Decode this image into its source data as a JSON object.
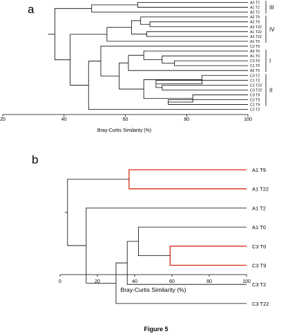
{
  "caption": "Figure 5",
  "panel_a": {
    "label": "a",
    "axis_title": "Bray-Curtis Similarity (%)",
    "ticks": [
      "20",
      "40",
      "60",
      "80",
      "100"
    ],
    "leaves": [
      "A3 T2",
      "A1 T2",
      "A2 T2",
      "A3 T9",
      "A2 T9",
      "A3 T22",
      "A1 T22",
      "A2 T22",
      "A1 T9",
      "C2 T0",
      "A3 T0",
      "A1 T0",
      "C3 T0",
      "C1 T0",
      "A2 T0",
      "C3 T2",
      "C1 T2",
      "C1 T22",
      "C3 T22",
      "C3 T9",
      "C2 T9",
      "C1 T9",
      "C2 T2"
    ],
    "groups": [
      {
        "name": "III",
        "from_leaf": 0,
        "to_leaf": 2
      },
      {
        "name": "IV",
        "from_leaf": 3,
        "to_leaf": 8
      },
      {
        "name": "I",
        "from_leaf": 10,
        "to_leaf": 14
      },
      {
        "name": "II",
        "from_leaf": 15,
        "to_leaf": 21
      }
    ]
  },
  "panel_b": {
    "label": "b",
    "axis_title": "Bray-Curtis Similarity (%)",
    "ticks": [
      "0",
      "20",
      "40",
      "60",
      "80",
      "100"
    ],
    "leaves": [
      "A1 T9",
      "A1 T22",
      "A1 T2",
      "A1 T0",
      "C3 T0",
      "C3 T9",
      "C3 T2",
      "C3 T22"
    ],
    "highlight_color": "#d42a10"
  },
  "chart_data": [
    {
      "type": "dendrogram",
      "xlabel": "Bray-Curtis Similarity (%)",
      "xlim": [
        20,
        100
      ],
      "leaves": [
        "A3 T2",
        "A1 T2",
        "A2 T2",
        "A3 T9",
        "A2 T9",
        "A3 T22",
        "A1 T22",
        "A2 T22",
        "A1 T9",
        "C2 T0",
        "A3 T0",
        "A1 T0",
        "C3 T0",
        "C1 T0",
        "A2 T0",
        "C3 T2",
        "C1 T2",
        "C1 T22",
        "C3 T22",
        "C3 T9",
        "C2 T9",
        "C1 T9",
        "C2 T2"
      ],
      "merges": [
        {
          "a": "leaf:0",
          "b": "leaf:1",
          "similarity": 64
        },
        {
          "a": "merge:0",
          "b": "leaf:2",
          "similarity": 49
        },
        {
          "a": "leaf:4",
          "b": "leaf:5",
          "similarity": 68
        },
        {
          "a": "leaf:3",
          "b": "merge:2",
          "similarity": 65
        },
        {
          "a": "leaf:6",
          "b": "leaf:7",
          "similarity": 67
        },
        {
          "a": "merge:3",
          "b": "merge:4",
          "similarity": 62
        },
        {
          "a": "merge:5",
          "b": "leaf:8",
          "similarity": 54
        },
        {
          "a": "leaf:12",
          "b": "leaf:13",
          "similarity": 76
        },
        {
          "a": "leaf:11",
          "b": "merge:7",
          "similarity": 72
        },
        {
          "a": "leaf:10",
          "b": "merge:8",
          "similarity": 66
        },
        {
          "a": "merge:9",
          "b": "leaf:14",
          "similarity": 61
        },
        {
          "a": "leaf:17",
          "b": "leaf:18",
          "similarity": 72
        },
        {
          "a": "leaf:16",
          "b": "merge:11",
          "similarity": 70
        },
        {
          "a": "leaf:15",
          "b": "merge:12",
          "similarity": 85
        },
        {
          "a": "leaf:20",
          "b": "leaf:21",
          "similarity": 74
        },
        {
          "a": "leaf:19",
          "b": "merge:14",
          "similarity": 82
        },
        {
          "a": "merge:13",
          "b": "merge:15",
          "similarity": 66
        },
        {
          "a": "merge:10",
          "b": "merge:16",
          "similarity": 58
        },
        {
          "a": "leaf:9",
          "b": "merge:17",
          "similarity": 52
        },
        {
          "a": "merge:18",
          "b": "leaf:22",
          "similarity": 48
        },
        {
          "a": "merge:6",
          "b": "merge:19",
          "similarity": 42
        },
        {
          "a": "merge:1",
          "b": "merge:20",
          "similarity": 37
        }
      ]
    },
    {
      "type": "dendrogram",
      "xlabel": "Bray-Curtis Similarity (%)",
      "xlim": [
        0,
        100
      ],
      "leaves": [
        "A1 T9",
        "A1 T22",
        "A1 T2",
        "A1 T0",
        "C3 T0",
        "C3 T9",
        "C3 T2",
        "C3 T22"
      ],
      "merges": [
        {
          "a": "leaf:0",
          "b": "leaf:1",
          "similarity": 37,
          "highlight": true
        },
        {
          "a": "leaf:4",
          "b": "leaf:5",
          "similarity": 59,
          "highlight": true
        },
        {
          "a": "leaf:3",
          "b": "merge:1",
          "similarity": 42
        },
        {
          "a": "merge:2",
          "b": "leaf:6",
          "similarity": 36
        },
        {
          "a": "merge:3",
          "b": "leaf:7",
          "similarity": 30
        },
        {
          "a": "leaf:2",
          "b": "merge:4",
          "similarity": 14
        },
        {
          "a": "merge:0",
          "b": "merge:5",
          "similarity": 4
        }
      ]
    }
  ]
}
